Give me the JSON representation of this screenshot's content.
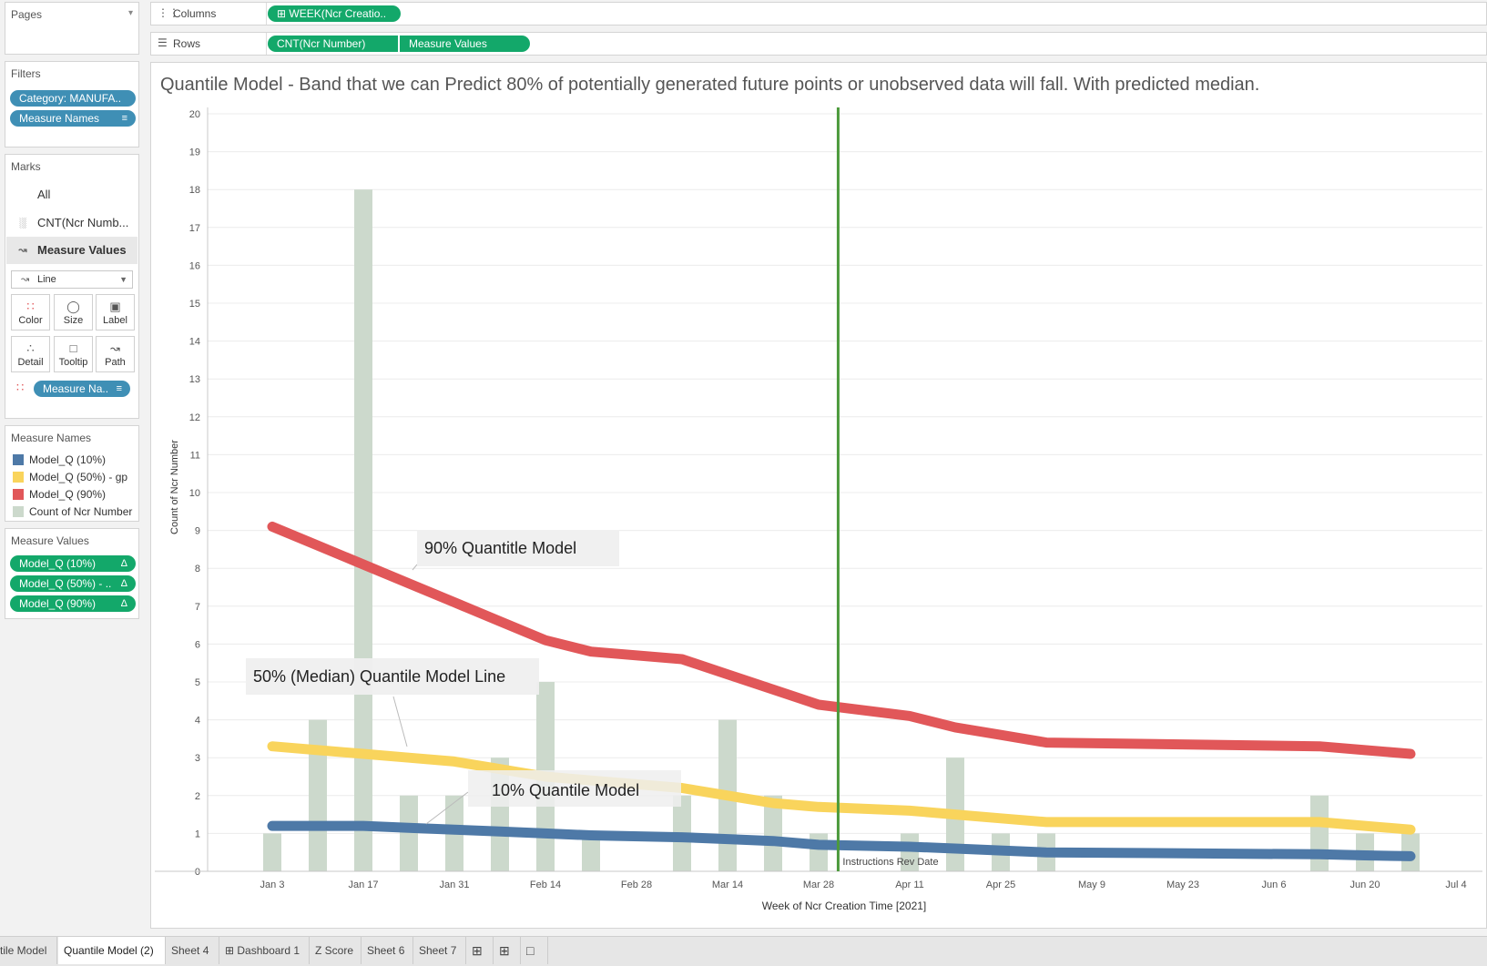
{
  "left_panel": {
    "pages": {
      "title": "Pages"
    },
    "filters": {
      "title": "Filters",
      "pills": [
        "Category: MANUFA..",
        "Measure Names"
      ]
    },
    "marks": {
      "title": "Marks",
      "all_label": "All",
      "cnt_label": "CNT(Ncr Numb...",
      "measure_values_label": "Measure Values",
      "mark_type": "Line",
      "buttons": [
        "Color",
        "Size",
        "Label",
        "Detail",
        "Tooltip",
        "Path"
      ],
      "color_pill": "Measure Na.."
    },
    "measure_names_legend": {
      "title": "Measure Names",
      "items": [
        {
          "label": "Model_Q (10%)",
          "color": "#4e79a7"
        },
        {
          "label": "Model_Q (50%) - gp",
          "color": "#f9d45c"
        },
        {
          "label": "Model_Q (90%)",
          "color": "#e15759"
        },
        {
          "label": "Count of Ncr Number",
          "color": "#ccd9cc"
        }
      ]
    },
    "measure_values": {
      "title": "Measure Values",
      "pills": [
        "Model_Q (10%)",
        "Model_Q (50%) - ..",
        "Model_Q (90%)"
      ]
    }
  },
  "shelves": {
    "columns_label": "Columns",
    "columns_pill": "WEEK(Ncr Creatio..",
    "rows_label": "Rows",
    "rows_pills": [
      "CNT(Ncr Number)",
      "Measure Values"
    ]
  },
  "view": {
    "title": "Quantile Model - Band that we can Predict 80% of potentially generated future points or unobserved data will fall.  With predicted median.",
    "annotations": {
      "q90": "90% Quantitle Model",
      "q50": "50% (Median) Quantile Model Line",
      "q10": "10% Quantile Model"
    },
    "reference_line_label": "Instructions Rev Date"
  },
  "chart_data": {
    "type": "bar",
    "title": "Quantile Model - Band that we can Predict 80% of potentially generated future points or unobserved data will fall.  With predicted median.",
    "xlabel": "Week of Ncr Creation Time [2021]",
    "ylabel": "Count of Ncr Number",
    "ylim": [
      0,
      20
    ],
    "y_ticks": [
      0,
      1,
      2,
      3,
      4,
      5,
      6,
      7,
      8,
      9,
      10,
      11,
      12,
      13,
      14,
      15,
      16,
      17,
      18,
      19,
      20
    ],
    "x_tick_labels": [
      "Jan 3",
      "Jan 17",
      "Jan 31",
      "Feb 14",
      "Feb 28",
      "Mar 14",
      "Mar 28",
      "Apr 11",
      "Apr 25",
      "May 9",
      "May 23",
      "Jun 6",
      "Jun 20",
      "Jul 4"
    ],
    "x_tick_dates": [
      "2021-01-03",
      "2021-01-17",
      "2021-01-31",
      "2021-02-14",
      "2021-02-28",
      "2021-03-14",
      "2021-03-28",
      "2021-04-11",
      "2021-04-25",
      "2021-05-09",
      "2021-05-23",
      "2021-06-06",
      "2021-06-20",
      "2021-07-04"
    ],
    "bars": {
      "name": "Count of Ncr Number",
      "color": "#ccd9cc",
      "weeks": [
        "2021-01-03",
        "2021-01-10",
        "2021-01-17",
        "2021-01-24",
        "2021-01-31",
        "2021-02-07",
        "2021-02-14",
        "2021-02-21",
        "2021-03-07",
        "2021-03-14",
        "2021-03-21",
        "2021-03-28",
        "2021-04-11",
        "2021-04-18",
        "2021-04-25",
        "2021-05-02",
        "2021-06-13",
        "2021-06-20",
        "2021-06-27"
      ],
      "values": [
        1,
        4,
        18,
        2,
        2,
        3,
        5,
        1,
        2,
        4,
        2,
        1,
        1,
        3,
        1,
        1,
        2,
        1,
        1
      ]
    },
    "series": [
      {
        "name": "Model_Q (90%)",
        "color": "#e15759",
        "x": [
          "2021-01-03",
          "2021-01-10",
          "2021-01-17",
          "2021-01-24",
          "2021-01-31",
          "2021-02-07",
          "2021-02-14",
          "2021-02-21",
          "2021-03-07",
          "2021-03-14",
          "2021-03-21",
          "2021-03-28",
          "2021-04-11",
          "2021-04-18",
          "2021-04-25",
          "2021-05-02",
          "2021-06-13",
          "2021-06-20",
          "2021-06-27"
        ],
        "values": [
          9.1,
          8.6,
          8.1,
          7.6,
          7.1,
          6.6,
          6.1,
          5.8,
          5.6,
          5.2,
          4.8,
          4.4,
          4.1,
          3.8,
          3.6,
          3.4,
          3.3,
          3.2,
          3.1
        ]
      },
      {
        "name": "Model_Q (50%) - gp",
        "color": "#f9d45c",
        "x": [
          "2021-01-03",
          "2021-01-10",
          "2021-01-17",
          "2021-01-24",
          "2021-01-31",
          "2021-02-07",
          "2021-02-14",
          "2021-02-21",
          "2021-03-07",
          "2021-03-14",
          "2021-03-21",
          "2021-03-28",
          "2021-04-11",
          "2021-04-18",
          "2021-04-25",
          "2021-05-02",
          "2021-06-13",
          "2021-06-20",
          "2021-06-27"
        ],
        "values": [
          3.3,
          3.2,
          3.1,
          3.0,
          2.9,
          2.7,
          2.5,
          2.4,
          2.2,
          2.0,
          1.8,
          1.7,
          1.6,
          1.5,
          1.4,
          1.3,
          1.3,
          1.2,
          1.1
        ]
      },
      {
        "name": "Model_Q (10%)",
        "color": "#4e79a7",
        "x": [
          "2021-01-03",
          "2021-01-10",
          "2021-01-17",
          "2021-01-24",
          "2021-01-31",
          "2021-02-07",
          "2021-02-14",
          "2021-02-21",
          "2021-03-07",
          "2021-03-14",
          "2021-03-21",
          "2021-03-28",
          "2021-04-11",
          "2021-04-18",
          "2021-04-25",
          "2021-05-02",
          "2021-06-13",
          "2021-06-20",
          "2021-06-27"
        ],
        "values": [
          1.2,
          1.2,
          1.2,
          1.15,
          1.1,
          1.05,
          1.0,
          0.95,
          0.9,
          0.85,
          0.8,
          0.7,
          0.65,
          0.6,
          0.55,
          0.5,
          0.45,
          0.42,
          0.4
        ]
      }
    ],
    "reference_line": {
      "date": "2021-03-31",
      "label": "Instructions Rev Date",
      "color": "#4c9a3c"
    },
    "grid": true,
    "legend": "left-panel"
  },
  "bottom_tabs": {
    "tabs": [
      "tile Model",
      "Quantile Model (2)",
      "Sheet 4",
      "Dashboard 1",
      "Z Score",
      "Sheet 6",
      "Sheet 7"
    ],
    "active": "Quantile Model (2)"
  }
}
